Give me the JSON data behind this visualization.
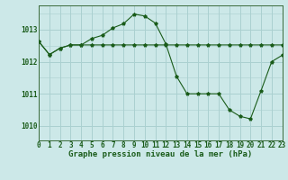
{
  "title": "Graphe pression niveau de la mer (hPa)",
  "bg_color": "#cce8e8",
  "grid_color": "#aad0d0",
  "line_color": "#1a5c1a",
  "xlim": [
    0,
    23
  ],
  "ylim": [
    1009.55,
    1013.75
  ],
  "yticks": [
    1010,
    1011,
    1012,
    1013
  ],
  "xticks": [
    0,
    1,
    2,
    3,
    4,
    5,
    6,
    7,
    8,
    9,
    10,
    11,
    12,
    13,
    14,
    15,
    16,
    17,
    18,
    19,
    20,
    21,
    22,
    23
  ],
  "line1_x": [
    0,
    1,
    2,
    3,
    4,
    5,
    6,
    7,
    8,
    9,
    10,
    11,
    12,
    13,
    14,
    15,
    16,
    17,
    18,
    19,
    20,
    21,
    22,
    23
  ],
  "line1_y": [
    1012.62,
    1012.22,
    1012.42,
    1012.52,
    1012.52,
    1012.52,
    1012.52,
    1012.52,
    1012.52,
    1012.52,
    1012.52,
    1012.52,
    1012.52,
    1012.52,
    1012.52,
    1012.52,
    1012.52,
    1012.52,
    1012.52,
    1012.52,
    1012.52,
    1012.52,
    1012.52,
    1012.52
  ],
  "line2_x": [
    0,
    1,
    2,
    3,
    4,
    5,
    6,
    7,
    8,
    9,
    10,
    11,
    12,
    13,
    14,
    15,
    16,
    17,
    18,
    19,
    20,
    21,
    22,
    23
  ],
  "line2_y": [
    1012.62,
    1012.22,
    1012.42,
    1012.52,
    1012.52,
    1012.72,
    1012.82,
    1013.05,
    1013.18,
    1013.48,
    1013.42,
    1013.2,
    1012.55,
    1011.55,
    1011.0,
    1011.0,
    1011.0,
    1011.0,
    1010.5,
    1010.3,
    1010.22,
    1011.1,
    1012.0,
    1012.2
  ],
  "tick_fontsize": 5.5,
  "title_fontsize": 6.5
}
